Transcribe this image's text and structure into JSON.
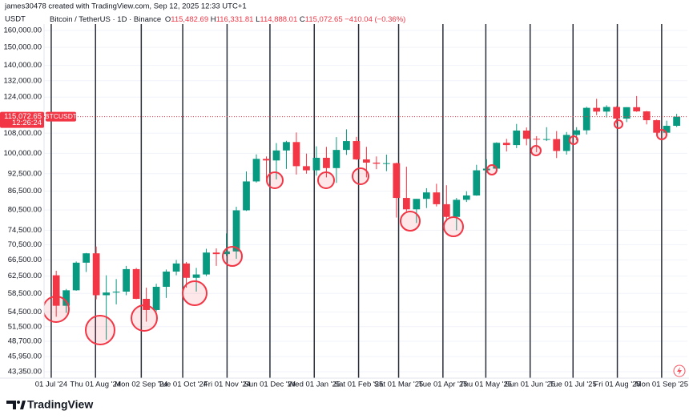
{
  "header": {
    "credit": "james30478 created with TradingView.com, Sep 12, 2025 12:33 UTC+1",
    "logo_text": "TradingView"
  },
  "chart_data": {
    "type": "candlestick",
    "currency": "USDT",
    "legend": {
      "symbol": "Bitcoin / TetherUS · 1D · Binance",
      "open": {
        "prefix": "O",
        "value": "115,482.69"
      },
      "high": {
        "prefix": "H",
        "value": "116,331.81"
      },
      "low": {
        "prefix": "L",
        "value": "114,888.01"
      },
      "close": {
        "prefix": "C",
        "value": "115,072.65"
      },
      "change": "−410.04 (−0.36%)"
    },
    "last_price": {
      "value": 115072.65,
      "label": "115,072.65",
      "symbol": "BTCUSDT",
      "countdown": "12:26:24"
    },
    "up_color": "#089981",
    "down_color": "#f23645",
    "log_scale": true,
    "grid": true,
    "x": [
      "2024-07-01",
      "2024-07-08",
      "2024-07-15",
      "2024-07-22",
      "2024-07-29",
      "2024-08-05",
      "2024-08-12",
      "2024-08-19",
      "2024-08-26",
      "2024-09-02",
      "2024-09-09",
      "2024-09-16",
      "2024-09-23",
      "2024-09-30",
      "2024-10-07",
      "2024-10-14",
      "2024-10-21",
      "2024-10-28",
      "2024-11-04",
      "2024-11-11",
      "2024-11-18",
      "2024-11-25",
      "2024-12-02",
      "2024-12-09",
      "2024-12-16",
      "2024-12-23",
      "2024-12-30",
      "2025-01-06",
      "2025-01-13",
      "2025-01-20",
      "2025-01-27",
      "2025-02-03",
      "2025-02-10",
      "2025-02-17",
      "2025-02-24",
      "2025-03-03",
      "2025-03-10",
      "2025-03-17",
      "2025-03-24",
      "2025-03-31",
      "2025-04-07",
      "2025-04-14",
      "2025-04-21",
      "2025-04-28",
      "2025-05-05",
      "2025-05-12",
      "2025-05-19",
      "2025-05-26",
      "2025-06-02",
      "2025-06-09",
      "2025-06-16",
      "2025-06-23",
      "2025-06-30",
      "2025-07-07",
      "2025-07-14",
      "2025-07-21",
      "2025-07-28",
      "2025-08-04",
      "2025-08-11",
      "2025-08-18",
      "2025-08-25",
      "2025-09-01",
      "2025-09-08"
    ],
    "open": [
      62700,
      55800,
      59200,
      65800,
      68200,
      58100,
      58700,
      58900,
      64200,
      57300,
      54900,
      60000,
      63600,
      65600,
      62100,
      62900,
      68400,
      68000,
      68700,
      80400,
      89800,
      97900,
      97300,
      101100,
      104400,
      95200,
      93700,
      98300,
      94500,
      101300,
      104800,
      97700,
      96500,
      96100,
      96300,
      84300,
      80700,
      84000,
      86100,
      82300,
      78400,
      83700,
      85100,
      93700,
      94300,
      104100,
      103200,
      109100,
      105700,
      105600,
      105600,
      100900,
      107300,
      109200,
      119000,
      117300,
      119400,
      114200,
      119300,
      117400,
      113500,
      108200,
      111100
    ],
    "high": [
      63800,
      59500,
      66100,
      68300,
      70000,
      62700,
      61800,
      65000,
      64500,
      59800,
      60700,
      64100,
      66500,
      66000,
      64500,
      69400,
      69500,
      73600,
      81500,
      93300,
      99600,
      98800,
      104000,
      104900,
      108300,
      99900,
      102700,
      102500,
      106400,
      109600,
      106500,
      102500,
      98800,
      99500,
      96500,
      95000,
      84000,
      87500,
      89000,
      88500,
      84300,
      86500,
      95700,
      97800,
      104300,
      105700,
      111900,
      110400,
      106800,
      110500,
      108900,
      108500,
      110500,
      119500,
      123200,
      120200,
      119800,
      119300,
      124500,
      117600,
      113800,
      113300,
      116300
    ],
    "low": [
      53500,
      54300,
      59100,
      63500,
      57200,
      49000,
      56100,
      58100,
      57200,
      52500,
      54600,
      57500,
      62700,
      59800,
      58900,
      62500,
      65000,
      67500,
      66800,
      80200,
      89400,
      90800,
      90500,
      94200,
      92200,
      92500,
      91800,
      91200,
      89300,
      99400,
      97500,
      91200,
      94100,
      93400,
      78200,
      80100,
      76600,
      81100,
      81600,
      77100,
      74500,
      83000,
      85000,
      92800,
      93400,
      100700,
      102000,
      103100,
      100400,
      104800,
      98200,
      99500,
      105100,
      107500,
      115700,
      114700,
      112000,
      112700,
      117200,
      111700,
      107300,
      107300,
      110600
    ],
    "close": [
      55800,
      59200,
      65800,
      68200,
      58100,
      58700,
      58900,
      64200,
      57300,
      54900,
      60000,
      63600,
      65600,
      62100,
      62900,
      68400,
      68000,
      68700,
      80400,
      89800,
      97900,
      97300,
      101100,
      104400,
      95200,
      93700,
      98300,
      94500,
      101300,
      104800,
      97700,
      96500,
      96100,
      96300,
      84300,
      80700,
      84000,
      86100,
      82300,
      78400,
      83700,
      85100,
      93700,
      94300,
      104100,
      103200,
      109100,
      105700,
      105600,
      105600,
      100900,
      107300,
      109200,
      119000,
      117300,
      119400,
      114200,
      119300,
      117400,
      113500,
      108200,
      111100,
      115072.65
    ],
    "xlim": [
      "2024-06-26",
      "2025-09-19"
    ],
    "xticks": [
      {
        "value": "2024-07-01",
        "label": "01 Jul '24"
      },
      {
        "value": "2024-08-01",
        "label": "Thu 01 Aug '24"
      },
      {
        "value": "2024-09-02",
        "label": "Mon 02 Sep '24"
      },
      {
        "value": "2024-10-01",
        "label": "Tue 01 Oct '24"
      },
      {
        "value": "2024-11-01",
        "label": "Fri 01 Nov '24"
      },
      {
        "value": "2024-12-01",
        "label": "Sun 01 Dec '24"
      },
      {
        "value": "2025-01-01",
        "label": "Wed 01 Jan '25"
      },
      {
        "value": "2025-02-01",
        "label": "Sat 01 Feb '25"
      },
      {
        "value": "2025-03-01",
        "label": "Sat 01 Mar '25"
      },
      {
        "value": "2025-04-01",
        "label": "Tue 01 Apr '25"
      },
      {
        "value": "2025-05-01",
        "label": "Thu 01 May '25"
      },
      {
        "value": "2025-06-01",
        "label": "Sun 01 Jun '25"
      },
      {
        "value": "2025-07-01",
        "label": "Tue 01 Jul '25"
      },
      {
        "value": "2025-08-01",
        "label": "Fri 01 Aug '25"
      },
      {
        "value": "2025-09-01",
        "label": "Mon 01 Sep '25"
      }
    ],
    "ylim": [
      42300,
      164000
    ],
    "yticks": [
      {
        "value": 43350,
        "label": "43,350.00"
      },
      {
        "value": 45950,
        "label": "45,950.00"
      },
      {
        "value": 48700,
        "label": "48,700.00"
      },
      {
        "value": 51500,
        "label": "51,500.00"
      },
      {
        "value": 54500,
        "label": "54,500.00"
      },
      {
        "value": 58500,
        "label": "58,500.00"
      },
      {
        "value": 62500,
        "label": "62,500.00"
      },
      {
        "value": 66500,
        "label": "66,500.00"
      },
      {
        "value": 70500,
        "label": "70,500.00"
      },
      {
        "value": 74500,
        "label": "74,500.00"
      },
      {
        "value": 80500,
        "label": "80,500.00"
      },
      {
        "value": 86500,
        "label": "86,500.00"
      },
      {
        "value": 92500,
        "label": "92,500.00"
      },
      {
        "value": 100000,
        "label": "100,000.00"
      },
      {
        "value": 108000,
        "label": "108,000.00"
      },
      {
        "value": 124000,
        "label": "124,000.00"
      },
      {
        "value": 132000,
        "label": "132,000.00"
      },
      {
        "value": 140000,
        "label": "140,000.00"
      },
      {
        "value": 150000,
        "label": "150,000.00"
      },
      {
        "value": 160000,
        "label": "160,000.00"
      }
    ]
  }
}
